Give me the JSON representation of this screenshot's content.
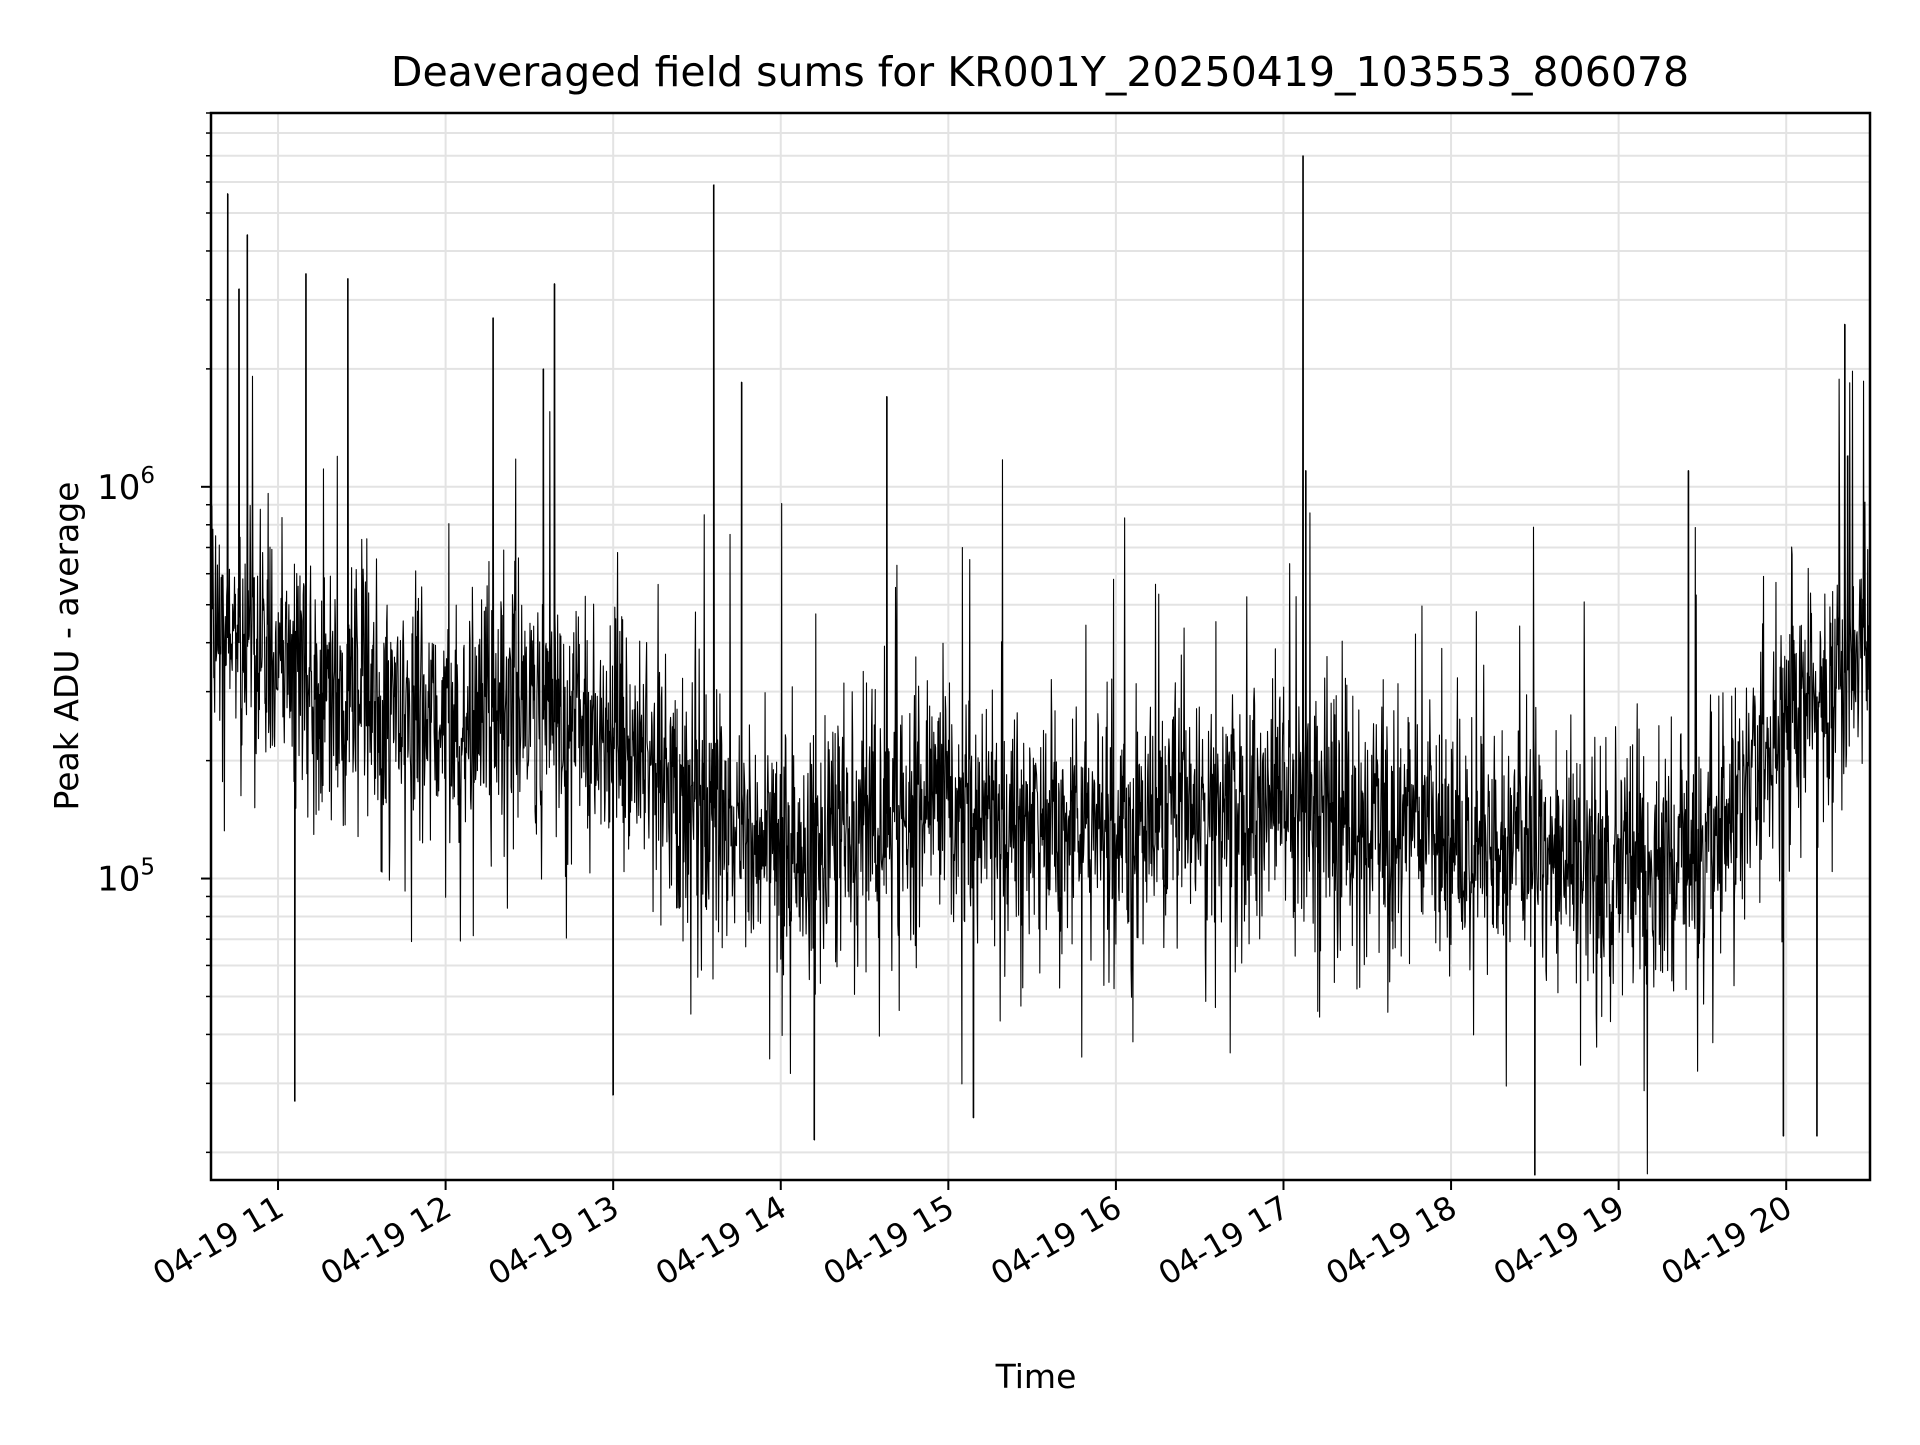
{
  "chart_data": {
    "type": "line",
    "title": "Deaveraged field sums for KR001Y_20250419_103553_806078",
    "xlabel": "Time",
    "ylabel": "Peak ADU - average",
    "yscale": "log",
    "ylim": [
      17000,
      9000000
    ],
    "xlim": [
      "2025-04-19 10:36",
      "2025-04-19 20:30"
    ],
    "grid": true,
    "x_ticks": [
      {
        "t": "2025-04-19 11:00",
        "label": "04-19 11"
      },
      {
        "t": "2025-04-19 12:00",
        "label": "04-19 12"
      },
      {
        "t": "2025-04-19 13:00",
        "label": "04-19 13"
      },
      {
        "t": "2025-04-19 14:00",
        "label": "04-19 14"
      },
      {
        "t": "2025-04-19 15:00",
        "label": "04-19 15"
      },
      {
        "t": "2025-04-19 16:00",
        "label": "04-19 16"
      },
      {
        "t": "2025-04-19 17:00",
        "label": "04-19 17"
      },
      {
        "t": "2025-04-19 18:00",
        "label": "04-19 18"
      },
      {
        "t": "2025-04-19 19:00",
        "label": "04-19 19"
      },
      {
        "t": "2025-04-19 20:00",
        "label": "04-19 20"
      }
    ],
    "y_ticks": [
      {
        "value": 100000,
        "base": "10",
        "exp": "5"
      },
      {
        "value": 1000000,
        "base": "10",
        "exp": "6"
      }
    ],
    "series": [
      {
        "color": "#000000",
        "baseline": [
          [
            "2025-04-19 10:36",
            430000
          ],
          [
            "2025-04-19 11:00",
            360000
          ],
          [
            "2025-04-19 11:30",
            290000
          ],
          [
            "2025-04-19 12:00",
            240000
          ],
          [
            "2025-04-19 12:30",
            260000
          ],
          [
            "2025-04-19 13:00",
            230000
          ],
          [
            "2025-04-19 13:30",
            160000
          ],
          [
            "2025-04-19 14:00",
            120000
          ],
          [
            "2025-04-19 14:30",
            145000
          ],
          [
            "2025-04-19 15:00",
            150000
          ],
          [
            "2025-04-19 15:30",
            140000
          ],
          [
            "2025-04-19 16:00",
            135000
          ],
          [
            "2025-04-19 16:30",
            150000
          ],
          [
            "2025-04-19 17:00",
            150000
          ],
          [
            "2025-04-19 17:30",
            140000
          ],
          [
            "2025-04-19 18:00",
            125000
          ],
          [
            "2025-04-19 18:30",
            110000
          ],
          [
            "2025-04-19 19:00",
            110000
          ],
          [
            "2025-04-19 19:30",
            115000
          ],
          [
            "2025-04-19 20:00",
            250000
          ],
          [
            "2025-04-19 20:30",
            380000
          ]
        ],
        "peaks": [
          [
            "2025-04-19 10:42",
            5600000
          ],
          [
            "2025-04-19 10:49",
            4400000
          ],
          [
            "2025-04-19 10:46",
            3200000
          ],
          [
            "2025-04-19 11:10",
            3500000
          ],
          [
            "2025-04-19 11:25",
            3400000
          ],
          [
            "2025-04-19 12:17",
            2700000
          ],
          [
            "2025-04-19 12:35",
            2000000
          ],
          [
            "2025-04-19 12:39",
            3300000
          ],
          [
            "2025-04-19 13:36",
            5900000
          ],
          [
            "2025-04-19 13:46",
            1850000
          ],
          [
            "2025-04-19 14:38",
            1700000
          ],
          [
            "2025-04-19 17:07",
            7000000
          ],
          [
            "2025-04-19 17:08",
            1100000
          ],
          [
            "2025-04-19 19:25",
            1100000
          ],
          [
            "2025-04-19 20:21",
            2600000
          ],
          [
            "2025-04-19 20:22",
            1200000
          ]
        ],
        "troughs": [
          [
            "2025-04-19 11:06",
            27000
          ],
          [
            "2025-04-19 13:00",
            28000
          ],
          [
            "2025-04-19 14:12",
            21500
          ],
          [
            "2025-04-19 15:09",
            24500
          ],
          [
            "2025-04-19 18:30",
            17500
          ],
          [
            "2025-04-19 19:59",
            22000
          ],
          [
            "2025-04-19 20:11",
            22000
          ]
        ]
      }
    ]
  }
}
